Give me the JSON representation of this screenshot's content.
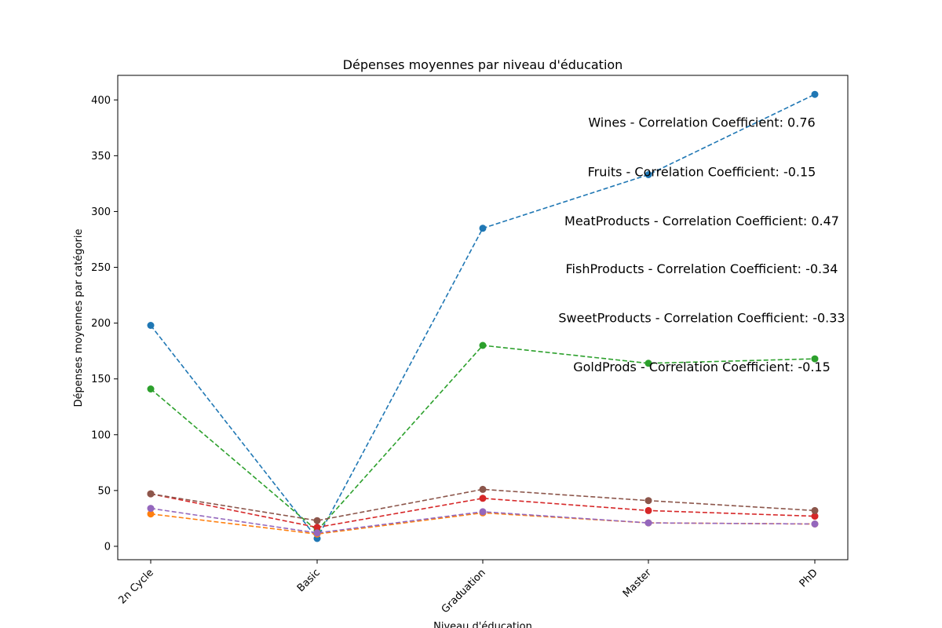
{
  "chart_data": {
    "type": "line",
    "title": "Dépenses moyennes par niveau d'éducation",
    "xlabel": "Niveau d'éducation",
    "ylabel": "Dépenses moyennes par catégorie",
    "categories": [
      "2n Cycle",
      "Basic",
      "Graduation",
      "Master",
      "PhD"
    ],
    "ylim": [
      -12,
      422
    ],
    "yticks": [
      0,
      50,
      100,
      150,
      200,
      250,
      300,
      350,
      400
    ],
    "grid": false,
    "line_style": "dashed",
    "markers": "circle",
    "series": [
      {
        "values": [
          198,
          7,
          285,
          333,
          405
        ],
        "color": "#1f77b4"
      },
      {
        "values": [
          29,
          11,
          30,
          21,
          20
        ],
        "color": "#ff7f0e"
      },
      {
        "values": [
          141,
          14,
          180,
          164,
          168
        ],
        "color": "#2ca02c"
      },
      {
        "values": [
          47,
          17,
          43,
          32,
          27
        ],
        "color": "#d62728"
      },
      {
        "values": [
          34,
          12,
          31,
          21,
          20
        ],
        "color": "#9467bd"
      },
      {
        "values": [
          47,
          23,
          51,
          41,
          32
        ],
        "color": "#8c564b"
      }
    ],
    "annotations": [
      {
        "text": "Wines - Correlation Coefficient: 0.76",
        "y": 380
      },
      {
        "text": "Fruits - Correlation Coefficient: -0.15",
        "y": 336
      },
      {
        "text": "MeatProducts - Correlation Coefficient: 0.47",
        "y": 292
      },
      {
        "text": "FishProducts - Correlation Coefficient: -0.34",
        "y": 249
      },
      {
        "text": "SweetProducts - Correlation Coefficient: -0.33",
        "y": 205
      },
      {
        "text": "GoldProds - Correlation Coefficient: -0.15",
        "y": 161
      }
    ]
  }
}
